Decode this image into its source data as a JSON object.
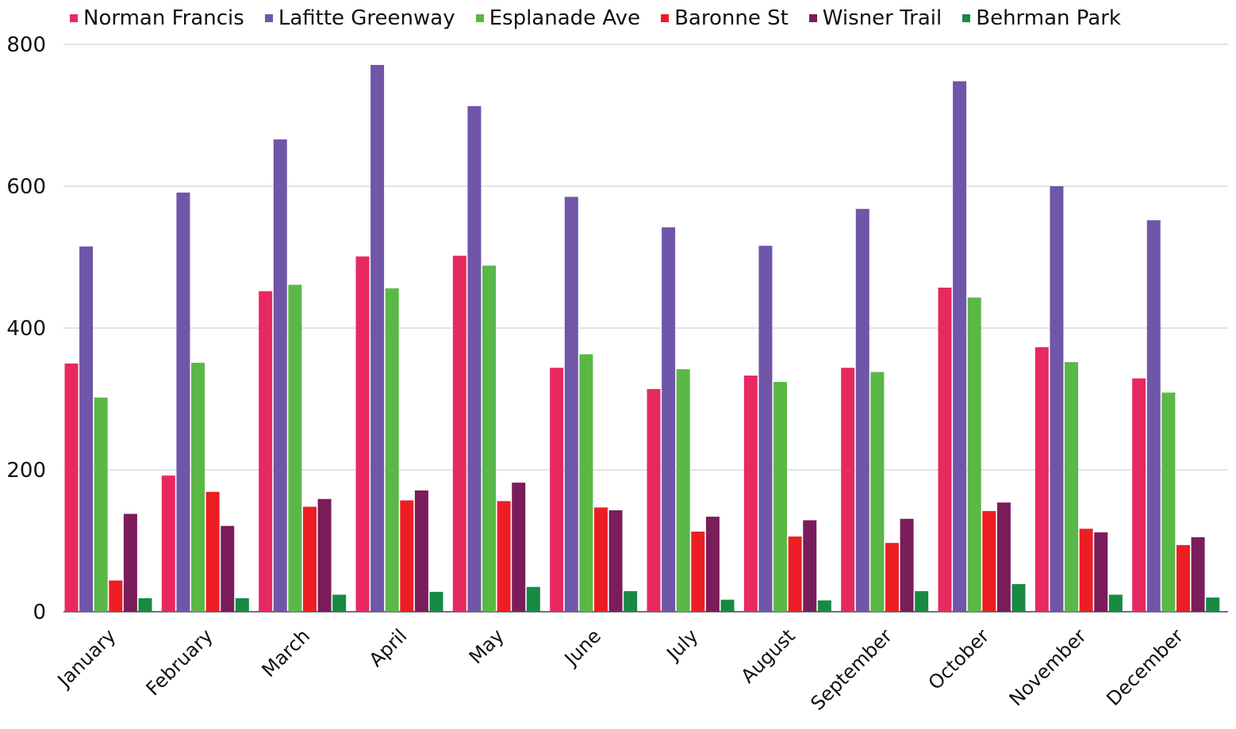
{
  "chart_data": {
    "type": "bar",
    "categories": [
      "January",
      "February",
      "March",
      "April",
      "May",
      "June",
      "July",
      "August",
      "September",
      "October",
      "November",
      "December"
    ],
    "series": [
      {
        "name": "Norman Francis",
        "color": "#e8295f",
        "values": [
          350,
          192,
          452,
          501,
          502,
          344,
          314,
          333,
          344,
          457,
          373,
          329
        ]
      },
      {
        "name": "Lafitte Greenway",
        "color": "#6f56a8",
        "values": [
          515,
          591,
          666,
          771,
          713,
          585,
          542,
          516,
          568,
          748,
          600,
          552
        ]
      },
      {
        "name": "Esplanade Ave",
        "color": "#5ab846",
        "values": [
          302,
          351,
          461,
          456,
          488,
          363,
          342,
          324,
          338,
          443,
          352,
          309
        ]
      },
      {
        "name": "Baronne St",
        "color": "#ec1e24",
        "values": [
          44,
          169,
          148,
          157,
          156,
          147,
          113,
          106,
          97,
          142,
          117,
          94
        ]
      },
      {
        "name": "Wisner Trail",
        "color": "#7b1c5b",
        "values": [
          138,
          121,
          159,
          171,
          182,
          143,
          134,
          129,
          131,
          154,
          112,
          105
        ]
      },
      {
        "name": "Behrman Park",
        "color": "#168a43",
        "values": [
          19,
          19,
          24,
          28,
          35,
          29,
          17,
          16,
          29,
          39,
          24,
          20
        ]
      }
    ],
    "yticks": [
      "0",
      "200",
      "400",
      "600",
      "800"
    ],
    "ylim": [
      0,
      800
    ],
    "grid": true,
    "legend": "top"
  }
}
